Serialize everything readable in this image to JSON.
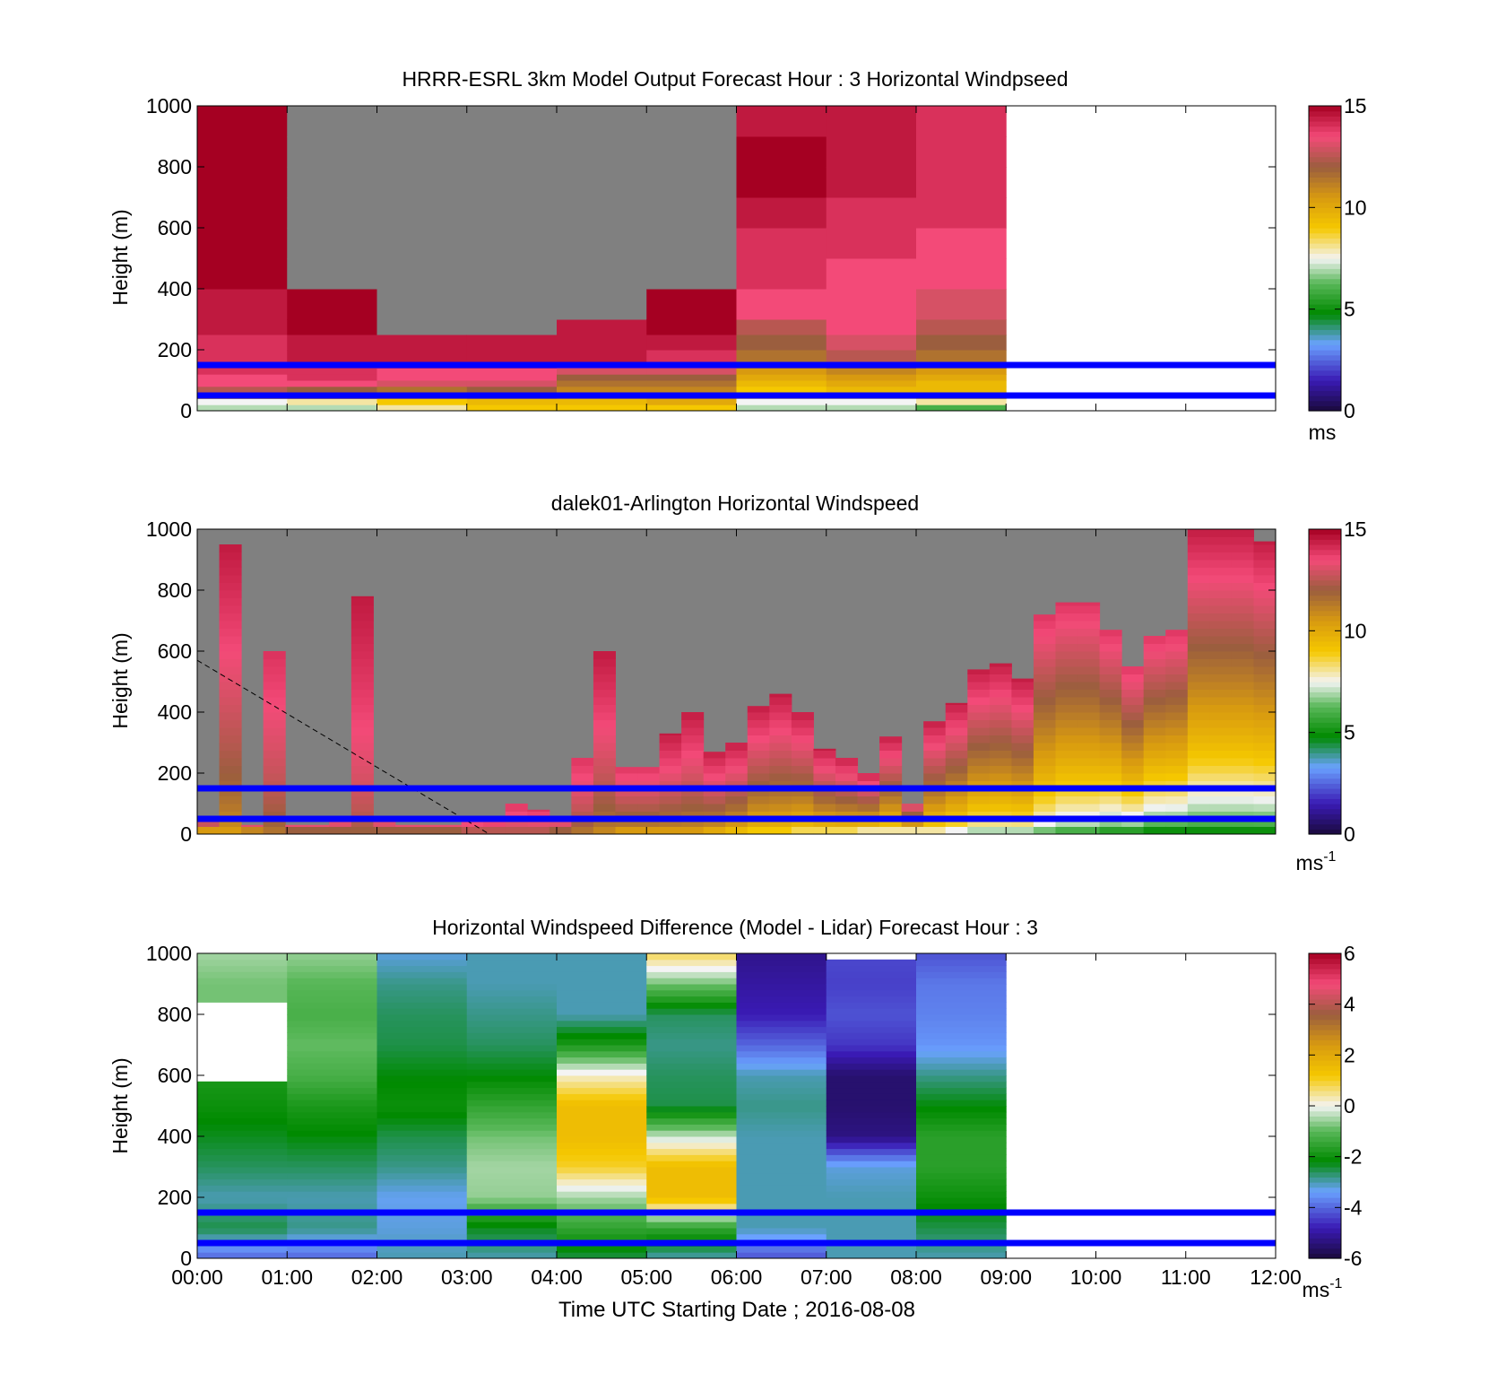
{
  "figure": {
    "xlabel": "Time UTC  Starting Date ; 2016-08-08",
    "xticks": [
      "00:00",
      "01:00",
      "02:00",
      "03:00",
      "04:00",
      "05:00",
      "06:00",
      "07:00",
      "08:00",
      "09:00",
      "10:00",
      "11:00",
      "12:00"
    ],
    "ref_line_color": "#0000ff",
    "missing_color": "#808080"
  },
  "chart_data": [
    {
      "type": "heatmap",
      "title": "HRRR-ESRL 3km Model Output   Forecast Hour : 3 Horizontal Windpseed",
      "ylabel": "Height (m)",
      "xlim": [
        "00:00",
        "12:00"
      ],
      "ylim": [
        0,
        1000
      ],
      "yticks": [
        0,
        200,
        400,
        600,
        800,
        1000
      ],
      "colorbar": {
        "min": 0,
        "max": 15,
        "ticks": [
          0,
          5,
          10,
          15
        ],
        "unit": "ms",
        "unit_sup": ""
      },
      "reference_lines_m": [
        50,
        150
      ],
      "height_bins_m": [
        20,
        40,
        60,
        80,
        100,
        120,
        140,
        160,
        200,
        250,
        300,
        400,
        500,
        600,
        700,
        800,
        900,
        1000
      ],
      "time_bins": [
        "00:00",
        "01:00",
        "02:00",
        "03:00",
        "04:00",
        "05:00",
        "06:00",
        "07:00",
        "08:00"
      ],
      "windspeed_ms": [
        [
          7,
          7.5,
          10.5,
          12.5,
          13.5,
          13.5,
          14,
          14,
          14,
          14,
          14.5,
          14.5,
          15,
          15,
          15,
          15,
          15,
          15
        ],
        [
          7,
          8,
          11,
          12,
          13.5,
          14,
          14,
          14,
          14.5,
          14.5,
          15,
          15,
          null,
          null,
          null,
          null,
          null,
          null
        ],
        [
          8,
          9,
          10.5,
          11.5,
          13,
          13.5,
          13.5,
          14,
          14.5,
          14.5,
          null,
          null,
          null,
          null,
          null,
          null,
          null,
          null
        ],
        [
          9,
          9.5,
          11,
          12,
          13,
          13.5,
          13.5,
          14,
          14.5,
          14.5,
          null,
          null,
          null,
          null,
          null,
          null,
          null,
          null
        ],
        [
          9,
          9.5,
          10.5,
          11,
          11.5,
          12,
          13,
          13.5,
          14.5,
          14.5,
          14.5,
          null,
          null,
          null,
          null,
          null,
          null,
          null
        ],
        [
          9,
          10,
          10.5,
          11,
          11.5,
          12,
          13,
          13.5,
          14,
          14.5,
          15,
          15,
          null,
          null,
          null,
          null,
          null,
          null
        ],
        [
          7,
          7.5,
          8.5,
          9,
          9.5,
          10,
          10.5,
          11,
          11.5,
          12,
          12.5,
          13.5,
          14,
          14,
          14.5,
          15,
          15,
          14.5
        ],
        [
          7,
          7.5,
          8.5,
          9.5,
          10,
          10.5,
          11,
          12,
          12.5,
          13,
          13.5,
          13.5,
          13.5,
          14,
          14,
          14.5,
          14.5,
          14.5
        ],
        [
          6,
          8,
          9,
          9.5,
          9.5,
          10,
          10.5,
          11,
          11.5,
          12,
          12.5,
          13,
          13.5,
          13.5,
          14,
          14,
          14,
          14
        ]
      ]
    },
    {
      "type": "heatmap",
      "title": "dalek01-Arlington  Horizontal Windspeed",
      "ylabel": "Height (m)",
      "xlim": [
        "00:00",
        "12:00"
      ],
      "ylim": [
        0,
        1000
      ],
      "yticks": [
        0,
        200,
        400,
        600,
        800,
        1000
      ],
      "colorbar": {
        "min": 0,
        "max": 15,
        "ticks": [
          0,
          5,
          10,
          15
        ],
        "unit": "ms",
        "unit_sup": "-1"
      },
      "reference_lines_m": [
        50,
        150
      ],
      "time_start": "00:00",
      "time_step_minutes": 15,
      "top_of_valid_data_m": [
        40,
        950,
        30,
        600,
        30,
        30,
        60,
        780,
        40,
        30,
        30,
        30,
        50,
        40,
        100,
        80,
        60,
        250,
        600,
        220,
        220,
        330,
        400,
        270,
        300,
        420,
        460,
        400,
        280,
        250,
        200,
        320,
        100,
        370,
        430,
        540,
        560,
        510,
        720,
        760,
        760,
        670,
        550,
        650,
        670,
        1000,
        1000,
        1000,
        960
      ],
      "surface_speed_ms": [
        10.5,
        10.5,
        11,
        11.5,
        12,
        12,
        12,
        12,
        12,
        12,
        12,
        12,
        12.5,
        12.5,
        12.5,
        12.5,
        12,
        11.5,
        11,
        10.5,
        10.5,
        10.5,
        10.5,
        10,
        9.5,
        9,
        9,
        8.5,
        8.5,
        8.5,
        8,
        8,
        8,
        8,
        7.5,
        7,
        7,
        7,
        6.5,
        6,
        6,
        5.5,
        5.5,
        5,
        5,
        5,
        5,
        5,
        5
      ],
      "speed_at_top_ms": [
        13.5,
        14.5,
        13.5,
        14,
        13.5,
        13.5,
        14,
        14.5,
        13.5,
        13.5,
        13.5,
        13.5,
        14,
        14,
        14,
        14,
        14,
        14,
        14.5,
        14,
        14,
        14.5,
        14.5,
        14.5,
        14.5,
        14.5,
        14.5,
        14.5,
        14.5,
        14.5,
        14.5,
        14.5,
        14,
        14.5,
        14.5,
        14.5,
        14.5,
        14.5,
        14,
        14,
        14,
        14,
        14,
        14,
        14,
        14.5,
        14.5,
        14.5,
        14.5
      ],
      "diagonal_guide": {
        "from": [
          "00:00",
          570
        ],
        "to": [
          "03:15",
          0
        ]
      }
    },
    {
      "type": "heatmap",
      "title": "Horizontal Windspeed Difference (Model - Lidar) Forecast Hour : 3",
      "ylabel": "Height (m)",
      "xlabel": "Time UTC  Starting Date ; 2016-08-08",
      "xlim": [
        "00:00",
        "12:00"
      ],
      "ylim": [
        0,
        1000
      ],
      "yticks": [
        0,
        200,
        400,
        600,
        800,
        1000
      ],
      "colorbar": {
        "min": -6,
        "max": 6,
        "ticks": [
          -6,
          -4,
          -2,
          0,
          2,
          4,
          6
        ],
        "unit": "ms",
        "unit_sup": "-1"
      },
      "reference_lines_m": [
        50,
        150
      ],
      "time_bins": [
        "00:00",
        "01:00",
        "02:00",
        "03:00",
        "04:00",
        "05:00",
        "06:00",
        "07:00",
        "08:00"
      ],
      "column_top_m": [
        1000,
        1000,
        1000,
        1000,
        1000,
        1000,
        1000,
        980,
        1000
      ],
      "blank_rows_m": [
        [
          [
            580,
            840
          ]
        ],
        [],
        [],
        [],
        [],
        [],
        [],
        [],
        []
      ],
      "profiles_m": [
        0,
        100,
        200,
        300,
        400,
        500,
        600,
        700,
        800,
        900,
        1000
      ],
      "difference_ms": [
        [
          -4,
          -2.5,
          -3,
          -2.6,
          -2.3,
          -2,
          -1.8,
          null,
          null,
          -0.8,
          -0.5
        ],
        [
          -4,
          -2.8,
          -3,
          -2.6,
          -2.2,
          -1.8,
          -1.2,
          -0.9,
          -1.2,
          -1,
          -0.6
        ],
        [
          -3,
          -3.2,
          -3.3,
          -2.8,
          -2.5,
          -2,
          -2.2,
          -2.5,
          -2.6,
          -2.8,
          -3.2
        ],
        [
          -3,
          -2.3,
          -0.6,
          -0.5,
          -0.8,
          -1.5,
          -2.2,
          -2.6,
          -2.8,
          -3,
          -3
        ],
        [
          -2.5,
          -1.5,
          -0.5,
          1,
          1.5,
          1.5,
          0.2,
          -1.8,
          -3,
          -3,
          -3
        ],
        [
          -3,
          -1.5,
          1.5,
          1.5,
          -0.3,
          -2.5,
          -2.6,
          -2.8,
          -2.6,
          -0.8,
          0.8
        ],
        [
          -4.2,
          -3,
          -3,
          -3,
          -3,
          -2.8,
          -3,
          -4,
          -4.8,
          -5,
          -5.2
        ],
        [
          -3,
          -3,
          -3,
          -3.2,
          -5.3,
          -5.5,
          -5.5,
          -4.5,
          -4.2,
          -4.4,
          -4.3
        ],
        [
          -3,
          -2.5,
          -2,
          -1.6,
          -1.6,
          -2.2,
          -2.8,
          -3.5,
          -3.7,
          -3.8,
          -4.2
        ]
      ]
    }
  ]
}
